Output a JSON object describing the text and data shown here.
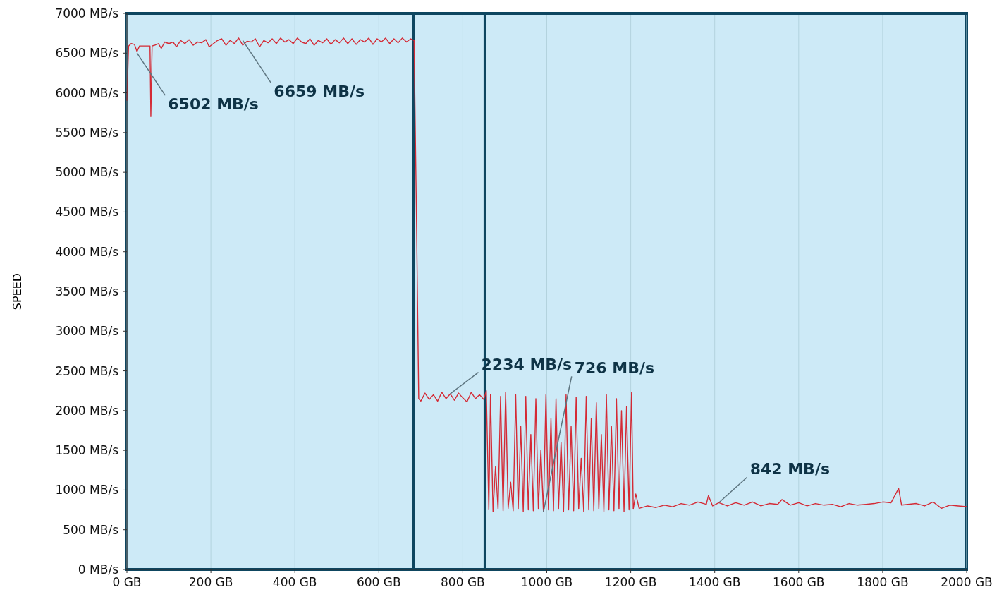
{
  "chart_data": {
    "type": "line",
    "ylabel": "SPEED",
    "xlim": [
      0,
      2000
    ],
    "ylim": [
      0,
      7000
    ],
    "xticks": [
      {
        "value": 0,
        "label": "0 GB"
      },
      {
        "value": 200,
        "label": "200 GB"
      },
      {
        "value": 400,
        "label": "400 GB"
      },
      {
        "value": 600,
        "label": "600 GB"
      },
      {
        "value": 800,
        "label": "800 GB"
      },
      {
        "value": 1000,
        "label": "1000 GB"
      },
      {
        "value": 1200,
        "label": "1200 GB"
      },
      {
        "value": 1400,
        "label": "1400 GB"
      },
      {
        "value": 1600,
        "label": "1600 GB"
      },
      {
        "value": 1800,
        "label": "1800 GB"
      },
      {
        "value": 2000,
        "label": "2000 GB"
      }
    ],
    "yticks": [
      {
        "value": 0,
        "label": "0 MB/s"
      },
      {
        "value": 500,
        "label": "500 MB/s"
      },
      {
        "value": 1000,
        "label": "1000 MB/s"
      },
      {
        "value": 1500,
        "label": "1500 MB/s"
      },
      {
        "value": 2000,
        "label": "2000 MB/s"
      },
      {
        "value": 2500,
        "label": "2500 MB/s"
      },
      {
        "value": 3000,
        "label": "3000 MB/s"
      },
      {
        "value": 3500,
        "label": "3500 MB/s"
      },
      {
        "value": 4000,
        "label": "4000 MB/s"
      },
      {
        "value": 4500,
        "label": "4500 MB/s"
      },
      {
        "value": 5000,
        "label": "5000 MB/s"
      },
      {
        "value": 5500,
        "label": "5500 MB/s"
      },
      {
        "value": 6000,
        "label": "6000 MB/s"
      },
      {
        "value": 6500,
        "label": "6500 MB/s"
      },
      {
        "value": 7000,
        "label": "7000 MB/s"
      }
    ],
    "grid": "x",
    "marker": "none",
    "line_style": "solid",
    "bands": [
      {
        "axis": "x",
        "from": 0,
        "to": 683,
        "label": null,
        "color": "#cdeaf7"
      },
      {
        "axis": "x",
        "from": 683,
        "to": 853,
        "label": null,
        "color": "#cdeaf7"
      },
      {
        "axis": "x",
        "from": 853,
        "to": 2000,
        "label": null,
        "color": "#cdeaf7"
      }
    ],
    "annotations": [
      {
        "text": "6502 MB/s",
        "x": 24,
        "y": 6502
      },
      {
        "text": "6659 MB/s",
        "x": 276,
        "y": 6659
      },
      {
        "text": "2234 MB/s",
        "x": 770,
        "y": 2210
      },
      {
        "text": "726 MB/s",
        "x": 992,
        "y": 726
      },
      {
        "text": "842 MB/s",
        "x": 1410,
        "y": 842
      }
    ],
    "series": [
      {
        "color": "#d42a35",
        "x": [
          0,
          4,
          10,
          18,
          24,
          30,
          45,
          55,
          57,
          60,
          66,
          75,
          82,
          90,
          100,
          110,
          118,
          128,
          138,
          148,
          158,
          168,
          178,
          188,
          196,
          206,
          216,
          226,
          236,
          246,
          256,
          266,
          276,
          286,
          296,
          306,
          316,
          326,
          336,
          346,
          356,
          366,
          376,
          386,
          396,
          406,
          416,
          426,
          436,
          446,
          456,
          466,
          476,
          486,
          496,
          506,
          516,
          526,
          536,
          546,
          556,
          566,
          576,
          586,
          596,
          606,
          616,
          626,
          636,
          646,
          656,
          666,
          676,
          684,
          690,
          695,
          700,
          710,
          720,
          730,
          740,
          750,
          760,
          770,
          780,
          790,
          800,
          810,
          820,
          830,
          840,
          850,
          856,
          862,
          866,
          872,
          878,
          884,
          890,
          896,
          902,
          908,
          914,
          920,
          926,
          932,
          938,
          944,
          950,
          956,
          962,
          968,
          974,
          980,
          986,
          992,
          998,
          1004,
          1010,
          1016,
          1022,
          1028,
          1034,
          1040,
          1046,
          1052,
          1058,
          1064,
          1070,
          1076,
          1082,
          1088,
          1094,
          1100,
          1106,
          1112,
          1118,
          1124,
          1130,
          1136,
          1142,
          1148,
          1154,
          1160,
          1166,
          1172,
          1178,
          1184,
          1190,
          1196,
          1202,
          1206,
          1212,
          1220,
          1240,
          1260,
          1280,
          1300,
          1320,
          1340,
          1360,
          1380,
          1385,
          1395,
          1410,
          1430,
          1450,
          1470,
          1490,
          1510,
          1530,
          1550,
          1560,
          1580,
          1600,
          1620,
          1640,
          1660,
          1680,
          1700,
          1720,
          1740,
          1760,
          1780,
          1800,
          1820,
          1838,
          1845,
          1860,
          1880,
          1900,
          1920,
          1940,
          1960,
          1980,
          2000
        ],
        "values": [
          5900,
          6590,
          6620,
          6610,
          6520,
          6590,
          6590,
          6590,
          5700,
          6590,
          6600,
          6620,
          6560,
          6640,
          6620,
          6640,
          6580,
          6660,
          6620,
          6670,
          6600,
          6640,
          6630,
          6670,
          6580,
          6620,
          6660,
          6680,
          6600,
          6660,
          6620,
          6690,
          6600,
          6650,
          6640,
          6680,
          6580,
          6660,
          6630,
          6680,
          6620,
          6690,
          6640,
          6670,
          6620,
          6690,
          6640,
          6620,
          6680,
          6600,
          6660,
          6630,
          6680,
          6610,
          6670,
          6630,
          6690,
          6620,
          6680,
          6610,
          6670,
          6640,
          6690,
          6610,
          6680,
          6640,
          6690,
          6620,
          6680,
          6630,
          6690,
          6640,
          6680,
          6660,
          4300,
          2150,
          2120,
          2220,
          2140,
          2200,
          2120,
          2230,
          2150,
          2210,
          2130,
          2220,
          2160,
          2110,
          2230,
          2150,
          2200,
          2140,
          2250,
          750,
          2200,
          730,
          1300,
          760,
          2180,
          740,
          2230,
          770,
          1100,
          740,
          2200,
          760,
          1800,
          730,
          2180,
          750,
          1700,
          740,
          2150,
          760,
          1500,
          730,
          2200,
          750,
          1900,
          740,
          2150,
          760,
          1600,
          730,
          2200,
          750,
          1800,
          740,
          2170,
          760,
          1400,
          730,
          2180,
          750,
          1900,
          740,
          2100,
          760,
          1700,
          730,
          2200,
          750,
          1800,
          740,
          2150,
          760,
          2000,
          730,
          2050,
          750,
          2230,
          760,
          950,
          770,
          800,
          780,
          810,
          790,
          830,
          810,
          850,
          820,
          930,
          800,
          840,
          800,
          840,
          810,
          850,
          800,
          830,
          820,
          880,
          810,
          840,
          800,
          830,
          810,
          820,
          790,
          830,
          810,
          820,
          830,
          850,
          840,
          1020,
          810,
          820,
          830,
          800,
          850,
          770,
          810,
          800,
          790
        ]
      }
    ]
  }
}
